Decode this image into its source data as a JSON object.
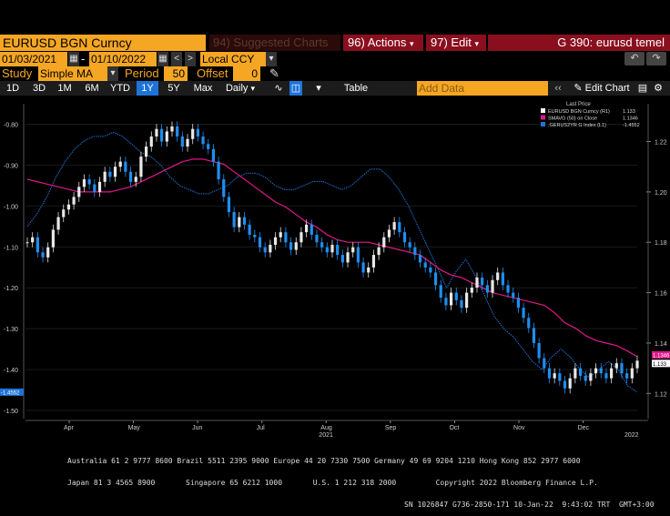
{
  "toolbar": {
    "ticker": "EURUSD BGN Curncy",
    "suggested_num": "94)",
    "suggested": "Suggested Charts",
    "actions_num": "96)",
    "actions": "Actions",
    "edit_num": "97)",
    "edit": "Edit",
    "title_num": "G 390:",
    "title": "eurusd temel"
  },
  "range": {
    "start": "01/03/2021",
    "dash": "-",
    "end": "01/10/2022",
    "currency": "Local CCY"
  },
  "study": {
    "label": "Study",
    "value": "Simple MA",
    "period_label": "Period",
    "period": "50",
    "offset_label": "Offset",
    "offset": "0"
  },
  "tabs": [
    "1D",
    "3D",
    "1M",
    "6M",
    "YTD",
    "1Y",
    "5Y",
    "Max"
  ],
  "active_tab": "1Y",
  "frequency": "Daily",
  "table_label": "Table",
  "add_data_placeholder": "Add Data",
  "edit_chart": "Edit Chart",
  "colors": {
    "accent": "#f5a623",
    "red": "#8a0f1e",
    "blue": "#1e73d8",
    "ma": "#e0178c"
  },
  "footer": {
    "line1": "Australia 61 2 9777 8600 Brazil 5511 2395 9000 Europe 44 20 7330 7500 Germany 49 69 9204 1210 Hong Kong 852 2977 6000",
    "line2": "Japan 81 3 4565 8900       Singapore 65 6212 1000       U.S. 1 212 318 2000         Copyright 2022 Bloomberg Finance L.P.",
    "line3": "SN 1026847 G736-2850-171 10-Jan-22  9:43:02 TRT  GMT+3:00"
  },
  "chart_data": {
    "type": "line",
    "legend": {
      "header": "Last Price",
      "entries": [
        {
          "name": "EURUSD BGN Curncy (R1)",
          "value": "1.133",
          "color": "#ffffff"
        },
        {
          "name": "SMAVG (50) on Close",
          "value": "1.1346",
          "color": "#e0178c"
        },
        {
          "name": ".GERUS2YR G Index (L1)",
          "value": "-1.4552",
          "color": "#1e73d8"
        }
      ]
    },
    "x_ticks": [
      "Apr",
      "May",
      "Jun",
      "Jul",
      "Aug",
      "Sep",
      "Oct",
      "Nov",
      "Dec"
    ],
    "year_labels": [
      {
        "label": "2021",
        "month": "Aug"
      },
      {
        "label": "2022",
        "month": "Jan"
      }
    ],
    "right_axis": {
      "ticks": [
        "1.22",
        "1.20",
        "1.18",
        "1.16",
        "1.14",
        "1.12"
      ],
      "ylim": [
        1.11,
        1.235
      ]
    },
    "left_axis": {
      "ticks": [
        "-0.80",
        "-0.90",
        "-1.00",
        "-1.10",
        "-1.20",
        "-1.30",
        "-1.40",
        "-1.50"
      ],
      "ylim": [
        -1.52,
        -0.75
      ]
    },
    "right_badges": [
      {
        "label": "1.1346",
        "color": "#e0178c"
      },
      {
        "label": "1.133",
        "color": "#ffffff"
      }
    ],
    "left_badge": {
      "label": "-1.4552",
      "color": "#1e73d8"
    },
    "series": [
      {
        "name": "EURUSD BGN Curncy",
        "axis": "right",
        "values": [
          1.18,
          1.182,
          1.176,
          1.174,
          1.178,
          1.185,
          1.19,
          1.193,
          1.195,
          1.198,
          1.202,
          1.205,
          1.203,
          1.2,
          1.204,
          1.208,
          1.206,
          1.21,
          1.212,
          1.208,
          1.204,
          1.206,
          1.214,
          1.218,
          1.222,
          1.225,
          1.22,
          1.224,
          1.226,
          1.222,
          1.218,
          1.221,
          1.225,
          1.222,
          1.219,
          1.217,
          1.212,
          1.205,
          1.198,
          1.192,
          1.186,
          1.19,
          1.187,
          1.183,
          1.182,
          1.178,
          1.176,
          1.179,
          1.182,
          1.184,
          1.18,
          1.177,
          1.18,
          1.184,
          1.187,
          1.183,
          1.18,
          1.178,
          1.176,
          1.179,
          1.175,
          1.172,
          1.176,
          1.178,
          1.172,
          1.168,
          1.17,
          1.175,
          1.178,
          1.182,
          1.185,
          1.188,
          1.184,
          1.18,
          1.178,
          1.175,
          1.172,
          1.17,
          1.168,
          1.163,
          1.158,
          1.155,
          1.16,
          1.157,
          1.154,
          1.16,
          1.162,
          1.166,
          1.163,
          1.16,
          1.165,
          1.168,
          1.163,
          1.16,
          1.158,
          1.154,
          1.15,
          1.146,
          1.14,
          1.134,
          1.13,
          1.126,
          1.128,
          1.125,
          1.122,
          1.126,
          1.13,
          1.127,
          1.125,
          1.128,
          1.13,
          1.128,
          1.126,
          1.13,
          1.132,
          1.128,
          1.126,
          1.13,
          1.133
        ]
      },
      {
        "name": "SMAVG (50) on Close",
        "axis": "right",
        "values": [
          1.205,
          1.204,
          1.203,
          1.202,
          1.201,
          1.2,
          1.2,
          1.2,
          1.2,
          1.201,
          1.202,
          1.204,
          1.206,
          1.208,
          1.21,
          1.212,
          1.213,
          1.213,
          1.212,
          1.211,
          1.208,
          1.205,
          1.202,
          1.199,
          1.196,
          1.194,
          1.191,
          1.188,
          1.186,
          1.183,
          1.181,
          1.18,
          1.18,
          1.18,
          1.179,
          1.178,
          1.177,
          1.176,
          1.175,
          1.172,
          1.169,
          1.167,
          1.166,
          1.164,
          1.162,
          1.16,
          1.159,
          1.158,
          1.157,
          1.156,
          1.155,
          1.152,
          1.148,
          1.146,
          1.143,
          1.141,
          1.14,
          1.139,
          1.137,
          1.1346
        ]
      },
      {
        "name": ".GERUS2YR G Index",
        "axis": "left",
        "values": [
          -1.05,
          -1.02,
          -0.98,
          -0.93,
          -0.89,
          -0.86,
          -0.84,
          -0.83,
          -0.83,
          -0.82,
          -0.83,
          -0.85,
          -0.87,
          -0.88,
          -0.9,
          -0.93,
          -0.95,
          -0.96,
          -0.97,
          -0.97,
          -0.96,
          -0.95,
          -0.93,
          -0.92,
          -0.92,
          -0.93,
          -0.95,
          -0.96,
          -0.96,
          -0.95,
          -0.94,
          -0.94,
          -0.95,
          -0.96,
          -0.95,
          -0.93,
          -0.91,
          -0.91,
          -0.93,
          -0.96,
          -1.0,
          -1.05,
          -1.1,
          -1.15,
          -1.2,
          -1.16,
          -1.13,
          -1.17,
          -1.22,
          -1.27,
          -1.3,
          -1.32,
          -1.35,
          -1.38,
          -1.4,
          -1.37,
          -1.35,
          -1.37,
          -1.4,
          -1.42,
          -1.4,
          -1.38,
          -1.4,
          -1.44,
          -1.4552
        ]
      }
    ]
  }
}
